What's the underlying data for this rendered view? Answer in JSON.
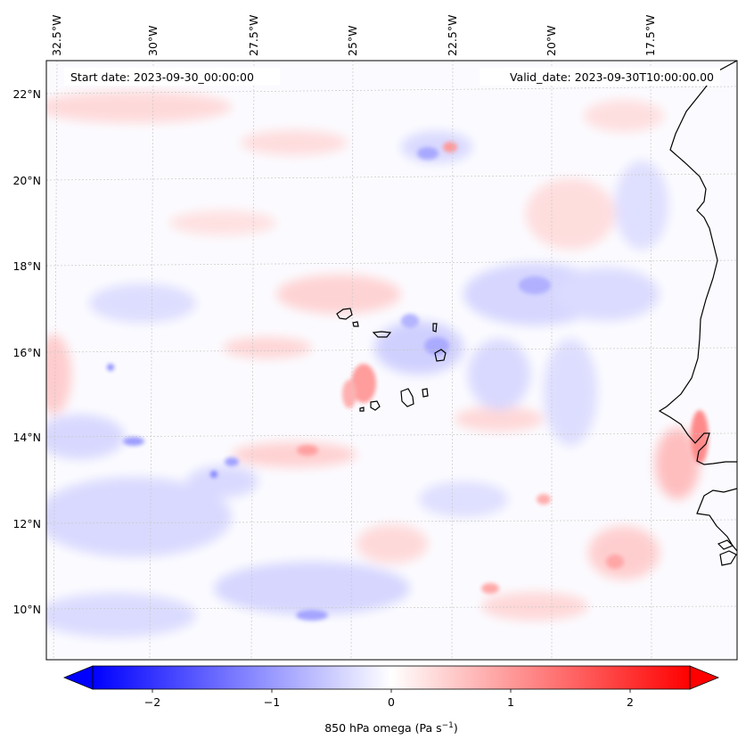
{
  "header": {
    "start_date": "Start date: 2023-09-30_00:00:00",
    "valid_date": "Valid_date: 2023-09-30T10:00:00.00"
  },
  "axes": {
    "lon_labels": [
      "32.5°W",
      "30°W",
      "27.5°W",
      "25°W",
      "22.5°W",
      "20°W",
      "17.5°W"
    ],
    "lat_labels": [
      "22°N",
      "20°N",
      "18°N",
      "16°N",
      "14°N",
      "12°N",
      "10°N"
    ]
  },
  "colorbar": {
    "ticks": [
      "−2",
      "−1",
      "0",
      "1",
      "2"
    ],
    "label_main": "850 hPa omega (Pa s",
    "label_sup": "−1",
    "label_end": ")",
    "min_color": "#0000ff",
    "mid_color": "#ffffff",
    "max_color": "#ff0000"
  },
  "chart_data": {
    "type": "heatmap",
    "variable": "850 hPa omega",
    "units": "Pa s−1",
    "colormap": "bwr",
    "color_range": [
      -2.6,
      2.6
    ],
    "extend": "both",
    "lon_range": [
      -33,
      -15.5
    ],
    "lat_range": [
      9,
      22.8
    ],
    "lon_ticks": [
      -32.5,
      -30,
      -27.5,
      -25,
      -22.5,
      -20,
      -17.5
    ],
    "lat_ticks": [
      22,
      20,
      18,
      16,
      14,
      12,
      10
    ],
    "colorbar_ticks": [
      -2,
      -1,
      0,
      1,
      2
    ],
    "grid": true
  }
}
